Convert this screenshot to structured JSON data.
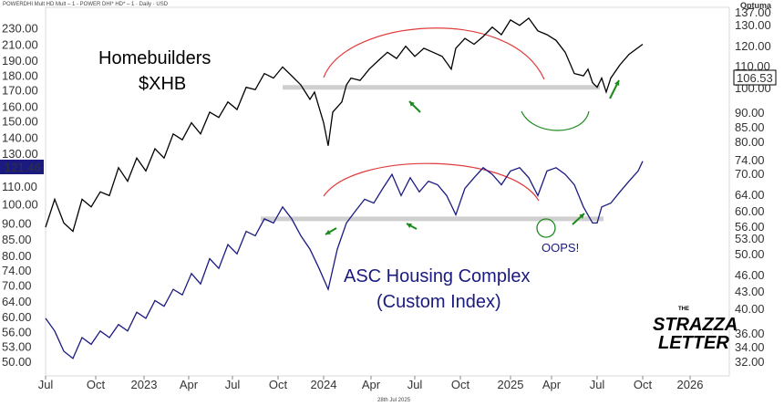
{
  "header": {
    "source_line": "POWERDHI Mult HD Mult – 1 - POWER DHI* HD* – 1 · Daily · USD",
    "brand": "Optuma"
  },
  "footer": {
    "date_stamp": "28th Jul 2025"
  },
  "annotations": {
    "title_line1": "Homebuilders",
    "title_line2": "$XHB",
    "index_line1": "ASC Housing Complex",
    "index_line2": "(Custom Index)",
    "oops": "OOPS!"
  },
  "logo": {
    "line1": "THE",
    "line2": "STRAZZA",
    "line3": "LETTER"
  },
  "colors": {
    "xhb": "#000000",
    "index": "#1a1a80",
    "arc": "#e03c3c",
    "support": "#cfcfcf",
    "arrow": "#1e8a1e",
    "highlight": "#1a1a80"
  },
  "chart_data": {
    "type": "line",
    "x_ticks": [
      "Jul",
      "Oct",
      "2023",
      "Apr",
      "Jul",
      "Oct",
      "2024",
      "Apr",
      "Jul",
      "Oct",
      "2025",
      "Apr",
      "Jul",
      "Oct",
      "2026"
    ],
    "left_axis": {
      "scale": "log",
      "ticks": [
        "230.00",
        "210.00",
        "190.00",
        "180.00",
        "170.00",
        "160.00",
        "150.00",
        "140.00",
        "130.00",
        "110.00",
        "100.00",
        "90.00",
        "85.00",
        "80.00",
        "74.00",
        "70.00",
        "64.00",
        "60.00",
        "56.00",
        "53.00",
        "50.00"
      ],
      "current_value": "121.46"
    },
    "right_axis": {
      "scale": "log",
      "ticks": [
        "137.00",
        "130.00",
        "120.00",
        "110.00",
        "100.00",
        "90.00",
        "85.00",
        "80.00",
        "74.00",
        "70.00",
        "64.00",
        "60.00",
        "56.00",
        "53.00",
        "50.00",
        "46.00",
        "43.00",
        "40.00",
        "36.00",
        "34.00",
        "32.00"
      ],
      "current_value": "106.53"
    },
    "series": [
      {
        "name": "Homebuilders $XHB",
        "axis": "right",
        "values": [
          [
            0,
            57
          ],
          [
            10,
            64
          ],
          [
            20,
            58
          ],
          [
            30,
            56
          ],
          [
            40,
            64
          ],
          [
            50,
            62
          ],
          [
            60,
            66
          ],
          [
            70,
            65
          ],
          [
            80,
            73
          ],
          [
            90,
            69
          ],
          [
            100,
            76
          ],
          [
            110,
            72
          ],
          [
            120,
            79
          ],
          [
            130,
            76
          ],
          [
            140,
            84
          ],
          [
            150,
            82
          ],
          [
            160,
            88
          ],
          [
            170,
            84
          ],
          [
            180,
            92
          ],
          [
            190,
            90
          ],
          [
            200,
            96
          ],
          [
            210,
            93
          ],
          [
            220,
            102
          ],
          [
            230,
            101
          ],
          [
            240,
            108
          ],
          [
            250,
            106
          ],
          [
            260,
            111
          ],
          [
            270,
            107
          ],
          [
            280,
            103
          ],
          [
            290,
            97
          ],
          [
            295,
            100
          ],
          [
            305,
            88
          ],
          [
            310,
            80
          ],
          [
            315,
            92
          ],
          [
            325,
            96
          ],
          [
            330,
            103
          ],
          [
            335,
            106
          ],
          [
            345,
            105
          ],
          [
            355,
            110
          ],
          [
            365,
            114
          ],
          [
            375,
            118
          ],
          [
            385,
            115
          ],
          [
            395,
            121
          ],
          [
            405,
            116
          ],
          [
            415,
            120
          ],
          [
            425,
            118
          ],
          [
            435,
            116
          ],
          [
            440,
            113
          ],
          [
            445,
            110
          ],
          [
            450,
            120
          ],
          [
            460,
            125
          ],
          [
            470,
            122
          ],
          [
            480,
            126
          ],
          [
            490,
            131
          ],
          [
            500,
            127
          ],
          [
            510,
            135
          ],
          [
            520,
            132
          ],
          [
            530,
            136
          ],
          [
            540,
            129
          ],
          [
            550,
            127
          ],
          [
            560,
            124
          ],
          [
            570,
            118
          ],
          [
            580,
            108
          ],
          [
            590,
            107
          ],
          [
            595,
            110
          ],
          [
            600,
            104
          ],
          [
            605,
            102
          ],
          [
            610,
            106
          ],
          [
            615,
            100
          ],
          [
            620,
            106
          ],
          [
            630,
            112
          ],
          [
            640,
            117
          ],
          [
            655,
            122
          ]
        ]
      },
      {
        "name": "ASC Housing Complex (Custom Index)",
        "axis": "right",
        "values": [
          [
            0,
            39
          ],
          [
            10,
            37
          ],
          [
            20,
            34
          ],
          [
            30,
            33
          ],
          [
            40,
            36
          ],
          [
            50,
            35
          ],
          [
            60,
            37
          ],
          [
            70,
            36
          ],
          [
            80,
            38
          ],
          [
            90,
            37
          ],
          [
            100,
            40
          ],
          [
            110,
            39
          ],
          [
            120,
            42
          ],
          [
            130,
            41
          ],
          [
            140,
            44
          ],
          [
            150,
            43
          ],
          [
            160,
            47
          ],
          [
            170,
            45
          ],
          [
            180,
            50
          ],
          [
            190,
            48
          ],
          [
            200,
            53
          ],
          [
            210,
            51
          ],
          [
            220,
            56
          ],
          [
            230,
            55
          ],
          [
            240,
            59
          ],
          [
            250,
            58
          ],
          [
            260,
            62
          ],
          [
            270,
            59
          ],
          [
            280,
            55
          ],
          [
            290,
            52
          ],
          [
            300,
            48
          ],
          [
            310,
            44
          ],
          [
            320,
            52
          ],
          [
            330,
            58
          ],
          [
            340,
            61
          ],
          [
            350,
            64
          ],
          [
            360,
            63
          ],
          [
            370,
            67
          ],
          [
            380,
            71
          ],
          [
            390,
            65
          ],
          [
            400,
            70
          ],
          [
            410,
            66
          ],
          [
            420,
            69
          ],
          [
            430,
            68
          ],
          [
            440,
            65
          ],
          [
            450,
            60
          ],
          [
            460,
            67
          ],
          [
            470,
            70
          ],
          [
            480,
            73
          ],
          [
            490,
            71
          ],
          [
            500,
            68
          ],
          [
            510,
            72
          ],
          [
            520,
            73
          ],
          [
            530,
            70
          ],
          [
            540,
            65
          ],
          [
            550,
            72
          ],
          [
            560,
            73
          ],
          [
            570,
            71
          ],
          [
            580,
            68
          ],
          [
            590,
            62
          ],
          [
            600,
            58
          ],
          [
            605,
            58
          ],
          [
            610,
            62
          ],
          [
            620,
            63
          ],
          [
            630,
            66
          ],
          [
            640,
            69
          ],
          [
            650,
            72
          ],
          [
            655,
            75
          ]
        ]
      }
    ],
    "reference_lines": [
      {
        "series": "Homebuilders $XHB",
        "value": 102
      },
      {
        "series": "ASC Housing Complex (Custom Index)",
        "value": 59
      }
    ]
  }
}
